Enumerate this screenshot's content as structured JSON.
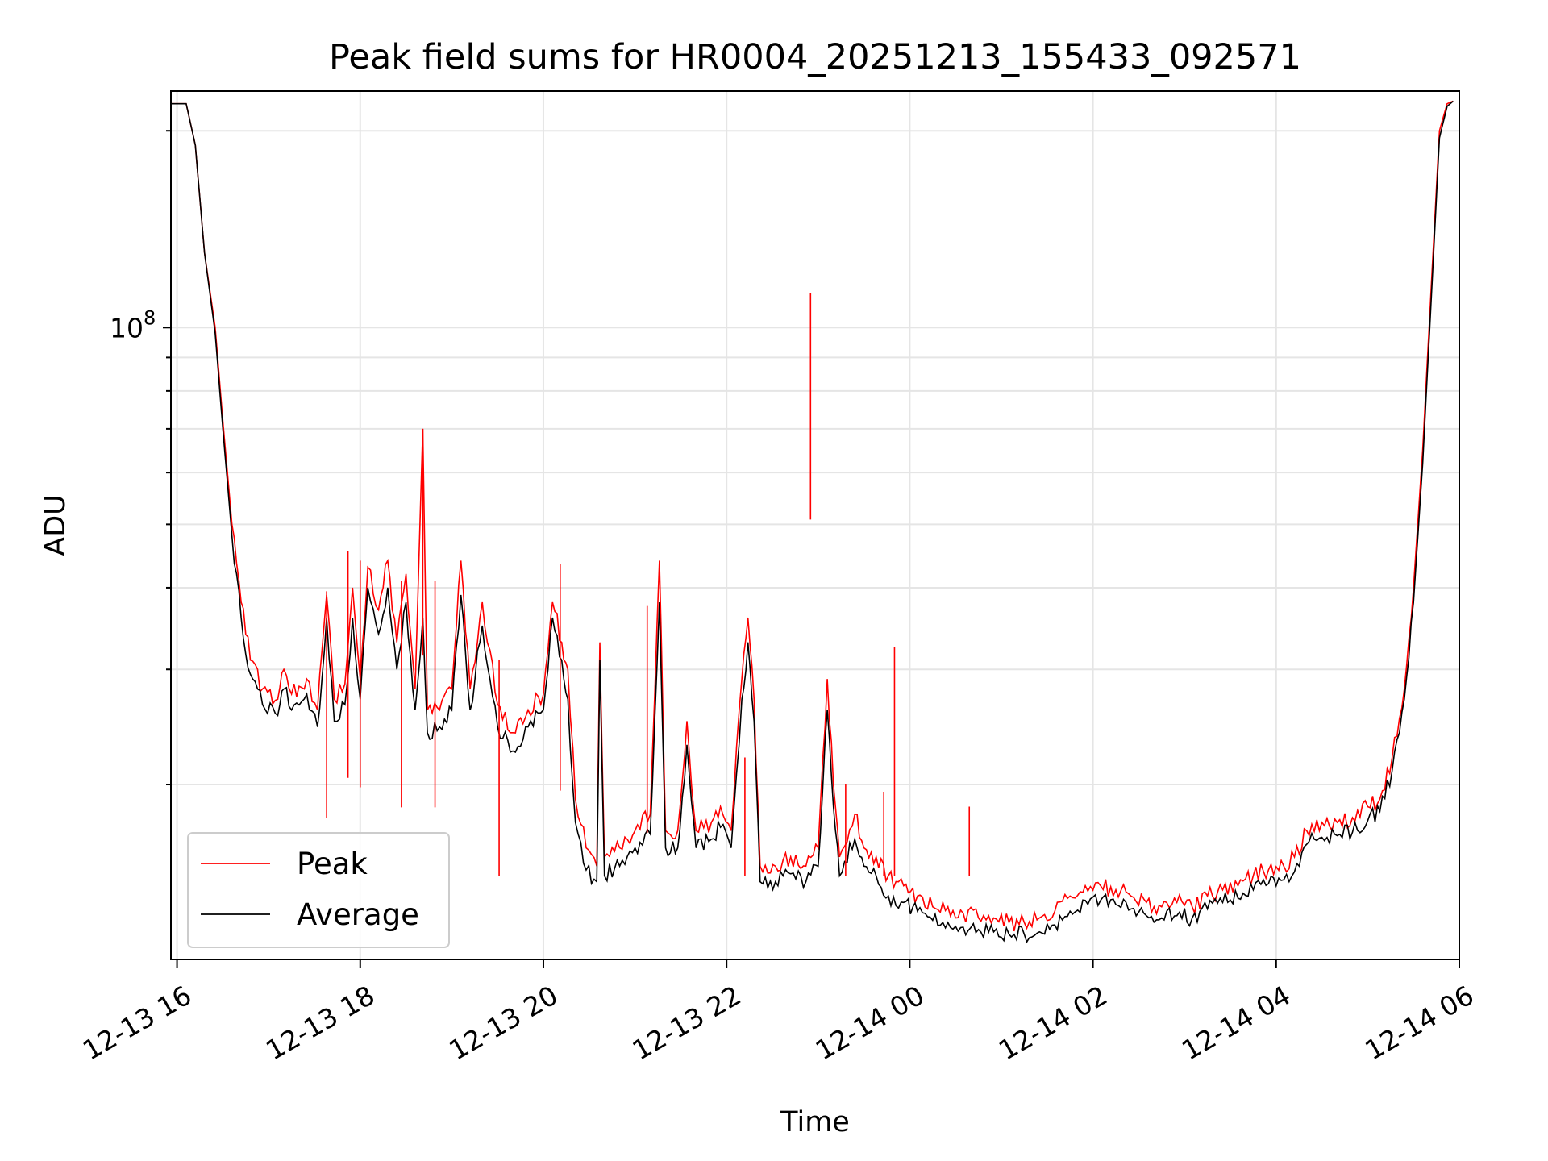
{
  "chart_data": {
    "type": "line",
    "title": "Peak field sums for HR0004_20251213_155433_092571",
    "xlabel": "Time",
    "ylabel": "ADU",
    "x_axis": {
      "kind": "date",
      "range": [
        "12-13 15:56",
        "12-14 06:00"
      ],
      "ticks": [
        {
          "x": "12-13 16:00",
          "label": "12-13 16"
        },
        {
          "x": "12-13 18:00",
          "label": "12-13 18"
        },
        {
          "x": "12-13 20:00",
          "label": "12-13 20"
        },
        {
          "x": "12-13 22:00",
          "label": "12-13 22"
        },
        {
          "x": "12-14 00:00",
          "label": "12-14 00"
        },
        {
          "x": "12-14 02:00",
          "label": "12-14 02"
        },
        {
          "x": "12-14 04:00",
          "label": "12-14 04"
        },
        {
          "x": "12-14 06:00",
          "label": "12-14 06"
        }
      ]
    },
    "y_axis": {
      "scale": "log",
      "range": [
        10800000,
        230000000
      ],
      "major_ticks": [
        {
          "y": 100000000,
          "label_base": "10",
          "label_exp": "8"
        }
      ],
      "minor_ticks": [
        20000000,
        30000000,
        40000000,
        50000000,
        60000000,
        70000000,
        80000000,
        90000000,
        200000000
      ]
    },
    "grid": true,
    "legend": "lower-left",
    "series": [
      {
        "name": "Peak",
        "color": "#ff0000",
        "points": [
          [
            "12-13 15:56",
            220000000
          ],
          [
            "12-13 16:06",
            220000000
          ],
          [
            "12-13 16:12",
            190000000
          ],
          [
            "12-13 16:18",
            130000000
          ],
          [
            "12-13 16:25",
            100000000
          ],
          [
            "12-13 16:30",
            72000000
          ],
          [
            "12-13 16:36",
            50000000
          ],
          [
            "12-13 16:42",
            38000000
          ],
          [
            "12-13 16:48",
            31000000
          ],
          [
            "12-13 16:56",
            28000000
          ],
          [
            "12-13 17:06",
            27000000
          ],
          [
            "12-13 17:10",
            30000000
          ],
          [
            "12-13 17:15",
            27500000
          ],
          [
            "12-13 17:25",
            29000000
          ],
          [
            "12-13 17:32",
            26000000
          ],
          [
            "12-13 17:38",
            39000000
          ],
          [
            "12-13 17:43",
            27000000
          ],
          [
            "12-13 17:50",
            28500000
          ],
          [
            "12-13 17:55",
            40000000
          ],
          [
            "12-13 18:00",
            29000000
          ],
          [
            "12-13 18:05",
            43000000
          ],
          [
            "12-13 18:12",
            37000000
          ],
          [
            "12-13 18:18",
            44000000
          ],
          [
            "12-13 18:24",
            33000000
          ],
          [
            "12-13 18:30",
            42000000
          ],
          [
            "12-13 18:36",
            28000000
          ],
          [
            "12-13 18:41",
            70000000
          ],
          [
            "12-13 18:44",
            26000000
          ],
          [
            "12-13 18:52",
            26000000
          ],
          [
            "12-13 19:00",
            28000000
          ],
          [
            "12-13 19:06",
            44000000
          ],
          [
            "12-13 19:12",
            28000000
          ],
          [
            "12-13 19:20",
            38000000
          ],
          [
            "12-13 19:30",
            26500000
          ],
          [
            "12-13 19:40",
            24000000
          ],
          [
            "12-13 19:50",
            26000000
          ],
          [
            "12-13 20:00",
            27500000
          ],
          [
            "12-13 20:06",
            38000000
          ],
          [
            "12-13 20:12",
            33000000
          ],
          [
            "12-13 20:16",
            30000000
          ],
          [
            "12-13 20:21",
            19000000
          ],
          [
            "12-13 20:28",
            16000000
          ],
          [
            "12-13 20:35",
            15000000
          ],
          [
            "12-13 20:37",
            33000000
          ],
          [
            "12-13 20:40",
            15500000
          ],
          [
            "12-13 20:50",
            16000000
          ],
          [
            "12-13 21:00",
            17000000
          ],
          [
            "12-13 21:10",
            18000000
          ],
          [
            "12-13 21:16",
            44000000
          ],
          [
            "12-13 21:20",
            17000000
          ],
          [
            "12-13 21:28",
            17000000
          ],
          [
            "12-13 21:34",
            25000000
          ],
          [
            "12-13 21:40",
            17000000
          ],
          [
            "12-13 21:50",
            17500000
          ],
          [
            "12-13 21:56",
            18500000
          ],
          [
            "12-13 22:03",
            17000000
          ],
          [
            "12-13 22:10",
            29000000
          ],
          [
            "12-13 22:14",
            36000000
          ],
          [
            "12-13 22:18",
            27000000
          ],
          [
            "12-13 22:22",
            15000000
          ],
          [
            "12-13 22:32",
            15000000
          ],
          [
            "12-13 22:42",
            15500000
          ],
          [
            "12-13 22:52",
            15000000
          ],
          [
            "12-13 23:00",
            16000000
          ],
          [
            "12-13 23:06",
            29000000
          ],
          [
            "12-13 23:10",
            20000000
          ],
          [
            "12-13 23:14",
            15500000
          ],
          [
            "12-13 23:24",
            18000000
          ],
          [
            "12-13 23:30",
            16000000
          ],
          [
            "12-13 23:38",
            15500000
          ],
          [
            "12-13 23:46",
            14500000
          ],
          [
            "12-13 23:56",
            14000000
          ],
          [
            "12-14 00:05",
            13500000
          ],
          [
            "12-14 00:15",
            13000000
          ],
          [
            "12-14 00:25",
            13000000
          ],
          [
            "12-14 00:35",
            12700000
          ],
          [
            "12-14 00:45",
            12500000
          ],
          [
            "12-14 00:55",
            12500000
          ],
          [
            "12-14 01:05",
            12300000
          ],
          [
            "12-14 01:15",
            12300000
          ],
          [
            "12-14 01:25",
            12500000
          ],
          [
            "12-14 01:35",
            12800000
          ],
          [
            "12-14 01:45",
            13500000
          ],
          [
            "12-14 01:55",
            14000000
          ],
          [
            "12-14 02:05",
            14000000
          ],
          [
            "12-14 02:15",
            13800000
          ],
          [
            "12-14 02:25",
            13500000
          ],
          [
            "12-14 02:35",
            13200000
          ],
          [
            "12-14 02:45",
            13000000
          ],
          [
            "12-14 02:55",
            13200000
          ],
          [
            "12-14 03:05",
            13000000
          ],
          [
            "12-14 03:15",
            13500000
          ],
          [
            "12-14 03:25",
            13800000
          ],
          [
            "12-14 03:35",
            14000000
          ],
          [
            "12-14 03:45",
            14500000
          ],
          [
            "12-14 03:55",
            14800000
          ],
          [
            "12-14 04:05",
            15000000
          ],
          [
            "12-14 04:12",
            15500000
          ],
          [
            "12-14 04:20",
            17000000
          ],
          [
            "12-14 04:30",
            17500000
          ],
          [
            "12-14 04:40",
            17500000
          ],
          [
            "12-14 04:50",
            17800000
          ],
          [
            "12-14 05:00",
            18500000
          ],
          [
            "12-14 05:08",
            19000000
          ],
          [
            "12-14 05:16",
            22000000
          ],
          [
            "12-14 05:24",
            28000000
          ],
          [
            "12-14 05:30",
            40000000
          ],
          [
            "12-14 05:36",
            65000000
          ],
          [
            "12-14 05:42",
            120000000
          ],
          [
            "12-14 05:47",
            200000000
          ],
          [
            "12-14 05:52",
            220000000
          ],
          [
            "12-14 05:56",
            222000000
          ]
        ]
      },
      {
        "name": "Average",
        "color": "#000000",
        "points": [
          [
            "12-13 15:56",
            220000000
          ],
          [
            "12-13 16:06",
            220000000
          ],
          [
            "12-13 16:12",
            190000000
          ],
          [
            "12-13 16:18",
            130000000
          ],
          [
            "12-13 16:25",
            98000000
          ],
          [
            "12-13 16:30",
            70000000
          ],
          [
            "12-13 16:36",
            48000000
          ],
          [
            "12-13 16:42",
            36000000
          ],
          [
            "12-13 16:48",
            29500000
          ],
          [
            "12-13 16:56",
            26500000
          ],
          [
            "12-13 17:06",
            25500000
          ],
          [
            "12-13 17:10",
            28000000
          ],
          [
            "12-13 17:15",
            26000000
          ],
          [
            "12-13 17:25",
            27500000
          ],
          [
            "12-13 17:32",
            24500000
          ],
          [
            "12-13 17:38",
            36000000
          ],
          [
            "12-13 17:43",
            25000000
          ],
          [
            "12-13 17:50",
            26500000
          ],
          [
            "12-13 17:55",
            36000000
          ],
          [
            "12-13 18:00",
            27000000
          ],
          [
            "12-13 18:05",
            40000000
          ],
          [
            "12-13 18:12",
            34000000
          ],
          [
            "12-13 18:18",
            40000000
          ],
          [
            "12-13 18:24",
            30000000
          ],
          [
            "12-13 18:30",
            38000000
          ],
          [
            "12-13 18:36",
            26000000
          ],
          [
            "12-13 18:41",
            36000000
          ],
          [
            "12-13 18:44",
            24000000
          ],
          [
            "12-13 18:52",
            24500000
          ],
          [
            "12-13 19:00",
            26000000
          ],
          [
            "12-13 19:06",
            39000000
          ],
          [
            "12-13 19:12",
            26000000
          ],
          [
            "12-13 19:20",
            35000000
          ],
          [
            "12-13 19:30",
            24500000
          ],
          [
            "12-13 19:40",
            22500000
          ],
          [
            "12-13 19:50",
            24500000
          ],
          [
            "12-13 20:00",
            26000000
          ],
          [
            "12-13 20:06",
            36000000
          ],
          [
            "12-13 20:12",
            31000000
          ],
          [
            "12-13 20:16",
            27000000
          ],
          [
            "12-13 20:21",
            17500000
          ],
          [
            "12-13 20:28",
            14800000
          ],
          [
            "12-13 20:35",
            14200000
          ],
          [
            "12-13 20:37",
            31000000
          ],
          [
            "12-13 20:40",
            14500000
          ],
          [
            "12-13 20:50",
            15000000
          ],
          [
            "12-13 21:00",
            16000000
          ],
          [
            "12-13 21:10",
            16800000
          ],
          [
            "12-13 21:16",
            38000000
          ],
          [
            "12-13 21:20",
            16000000
          ],
          [
            "12-13 21:28",
            16000000
          ],
          [
            "12-13 21:34",
            23000000
          ],
          [
            "12-13 21:40",
            16000000
          ],
          [
            "12-13 21:50",
            16500000
          ],
          [
            "12-13 21:56",
            17200000
          ],
          [
            "12-13 22:03",
            16000000
          ],
          [
            "12-13 22:10",
            27000000
          ],
          [
            "12-13 22:14",
            33000000
          ],
          [
            "12-13 22:18",
            25000000
          ],
          [
            "12-13 22:22",
            14200000
          ],
          [
            "12-13 22:32",
            14200000
          ],
          [
            "12-13 22:42",
            14600000
          ],
          [
            "12-13 22:52",
            14200000
          ],
          [
            "12-13 23:00",
            15000000
          ],
          [
            "12-13 23:06",
            26000000
          ],
          [
            "12-13 23:10",
            18500000
          ],
          [
            "12-13 23:14",
            14500000
          ],
          [
            "12-13 23:24",
            16500000
          ],
          [
            "12-13 23:30",
            15000000
          ],
          [
            "12-13 23:38",
            14500000
          ],
          [
            "12-13 23:46",
            13500000
          ],
          [
            "12-13 23:56",
            13200000
          ],
          [
            "12-14 00:05",
            12800000
          ],
          [
            "12-14 00:15",
            12400000
          ],
          [
            "12-14 00:25",
            12300000
          ],
          [
            "12-14 00:35",
            12100000
          ],
          [
            "12-14 00:45",
            12000000
          ],
          [
            "12-14 00:55",
            11900000
          ],
          [
            "12-14 01:05",
            11800000
          ],
          [
            "12-14 01:15",
            11800000
          ],
          [
            "12-14 01:25",
            11900000
          ],
          [
            "12-14 01:35",
            12200000
          ],
          [
            "12-14 01:45",
            12800000
          ],
          [
            "12-14 01:55",
            13300000
          ],
          [
            "12-14 02:05",
            13300000
          ],
          [
            "12-14 02:15",
            13100000
          ],
          [
            "12-14 02:25",
            12900000
          ],
          [
            "12-14 02:35",
            12600000
          ],
          [
            "12-14 02:45",
            12500000
          ],
          [
            "12-14 02:55",
            12600000
          ],
          [
            "12-14 03:05",
            12500000
          ],
          [
            "12-14 03:15",
            12900000
          ],
          [
            "12-14 03:25",
            13200000
          ],
          [
            "12-14 03:35",
            13400000
          ],
          [
            "12-14 03:45",
            13800000
          ],
          [
            "12-14 03:55",
            14100000
          ],
          [
            "12-14 04:05",
            14300000
          ],
          [
            "12-14 04:12",
            14700000
          ],
          [
            "12-14 04:20",
            16200000
          ],
          [
            "12-14 04:30",
            16600000
          ],
          [
            "12-14 04:40",
            16700000
          ],
          [
            "12-14 04:50",
            16900000
          ],
          [
            "12-14 05:00",
            17600000
          ],
          [
            "12-14 05:08",
            18200000
          ],
          [
            "12-14 05:16",
            21000000
          ],
          [
            "12-14 05:24",
            27000000
          ],
          [
            "12-14 05:30",
            38000000
          ],
          [
            "12-14 05:36",
            62000000
          ],
          [
            "12-14 05:42",
            115000000
          ],
          [
            "12-14 05:47",
            195000000
          ],
          [
            "12-14 05:52",
            218000000
          ],
          [
            "12-14 05:56",
            222000000
          ]
        ]
      }
    ],
    "spikes": [
      {
        "series": "Peak",
        "x": "12-13 22:55",
        "y": 113000000
      },
      {
        "series": "Peak",
        "x": "12-13 18:41",
        "y": 70000000
      },
      {
        "series": "Peak",
        "x": "12-13 20:11",
        "y": 43500000
      },
      {
        "series": "Peak",
        "x": "12-13 23:50",
        "y": 32500000
      },
      {
        "series": "Peak",
        "x": "12-13 19:31",
        "y": 31000000
      },
      {
        "series": "Peak",
        "x": "12-13 21:08",
        "y": 37500000
      },
      {
        "series": "Peak",
        "x": "12-13 17:52",
        "y": 45500000
      },
      {
        "series": "Peak",
        "x": "12-13 18:00",
        "y": 44000000
      },
      {
        "series": "Peak",
        "x": "12-13 17:38",
        "y": 39500000
      },
      {
        "series": "Peak",
        "x": "12-13 18:27",
        "y": 41000000
      },
      {
        "series": "Peak",
        "x": "12-13 18:49",
        "y": 41000000
      },
      {
        "series": "Peak",
        "x": "12-13 22:12",
        "y": 22000000
      },
      {
        "series": "Peak",
        "x": "12-13 23:18",
        "y": 20000000
      },
      {
        "series": "Peak",
        "x": "12-13 23:43",
        "y": 19500000
      },
      {
        "series": "Peak",
        "x": "12-14 00:39",
        "y": 18500000
      }
    ]
  }
}
